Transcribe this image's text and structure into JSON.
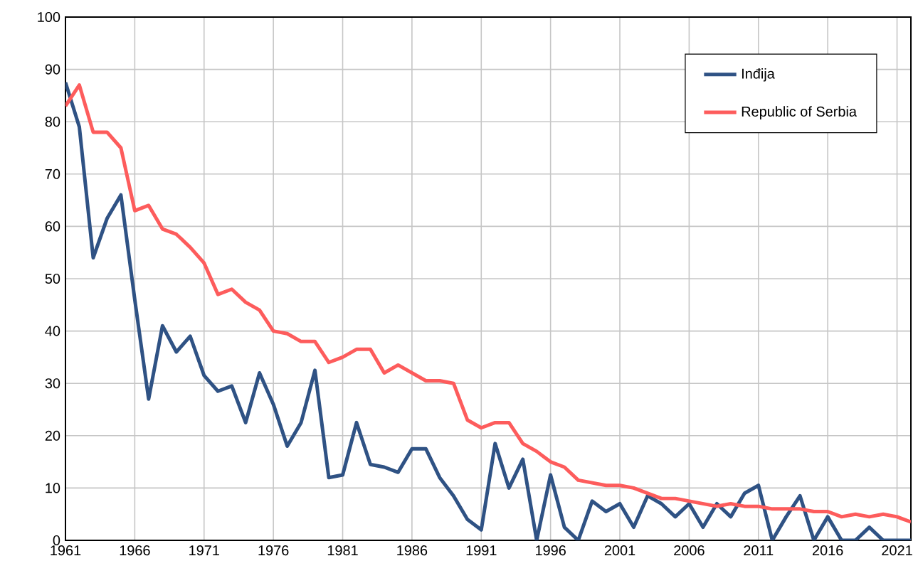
{
  "chart_data": {
    "type": "line",
    "xlim": [
      1961,
      2022
    ],
    "ylim": [
      0,
      100
    ],
    "xticks": [
      1961,
      1966,
      1971,
      1976,
      1981,
      1986,
      1991,
      1996,
      2001,
      2006,
      2011,
      2016,
      2021
    ],
    "yticks": [
      0,
      10,
      20,
      30,
      40,
      50,
      60,
      70,
      80,
      90,
      100
    ],
    "grid": true,
    "legend": "top right",
    "marker": "none",
    "line_style": "solid",
    "x": [
      1961,
      1962,
      1963,
      1964,
      1965,
      1966,
      1967,
      1968,
      1969,
      1970,
      1971,
      1972,
      1973,
      1974,
      1975,
      1976,
      1977,
      1978,
      1979,
      1980,
      1981,
      1982,
      1983,
      1984,
      1985,
      1986,
      1987,
      1988,
      1989,
      1990,
      1991,
      1992,
      1993,
      1994,
      1995,
      1996,
      1997,
      1998,
      1999,
      2000,
      2001,
      2002,
      2003,
      2004,
      2005,
      2006,
      2007,
      2008,
      2009,
      2010,
      2011,
      2012,
      2013,
      2014,
      2015,
      2016,
      2017,
      2018,
      2019,
      2020,
      2021,
      2022
    ],
    "series": [
      {
        "name": "Inđija",
        "color": "#2f5284",
        "values": [
          87.5,
          79,
          54,
          61.5,
          66,
          46,
          27,
          41,
          36,
          39,
          31.5,
          28.5,
          29.5,
          22.5,
          32,
          26,
          18,
          22.5,
          32.5,
          12,
          12.5,
          22.5,
          14.5,
          14,
          13,
          17.5,
          17.5,
          12,
          8.5,
          4,
          2,
          18.5,
          10,
          15.5,
          0,
          12.5,
          2.5,
          0,
          7.5,
          5.5,
          7,
          2.5,
          8.5,
          7,
          4.5,
          7,
          2.5,
          7,
          4.5,
          9,
          10.5,
          0,
          4.5,
          8.5,
          0,
          4.5,
          0,
          0,
          2.5,
          0,
          0,
          0
        ]
      },
      {
        "name": "Republic of Serbia",
        "color": "#fd5c5c",
        "values": [
          83,
          87,
          78,
          78,
          75,
          63,
          64,
          59.5,
          58.5,
          56,
          53,
          47,
          48,
          45.5,
          44,
          40,
          39.5,
          38,
          38,
          34,
          35,
          36.5,
          36.5,
          32,
          33.5,
          32,
          30.5,
          30.5,
          30,
          23,
          21.5,
          22.5,
          22.5,
          18.5,
          17,
          15,
          14,
          11.5,
          11,
          10.5,
          10.5,
          10,
          9,
          8,
          8,
          7.5,
          7,
          6.5,
          7,
          6.5,
          6.5,
          6,
          6,
          6,
          5.5,
          5.5,
          4.5,
          5,
          4.5,
          5,
          4.5,
          3.5
        ]
      }
    ]
  }
}
